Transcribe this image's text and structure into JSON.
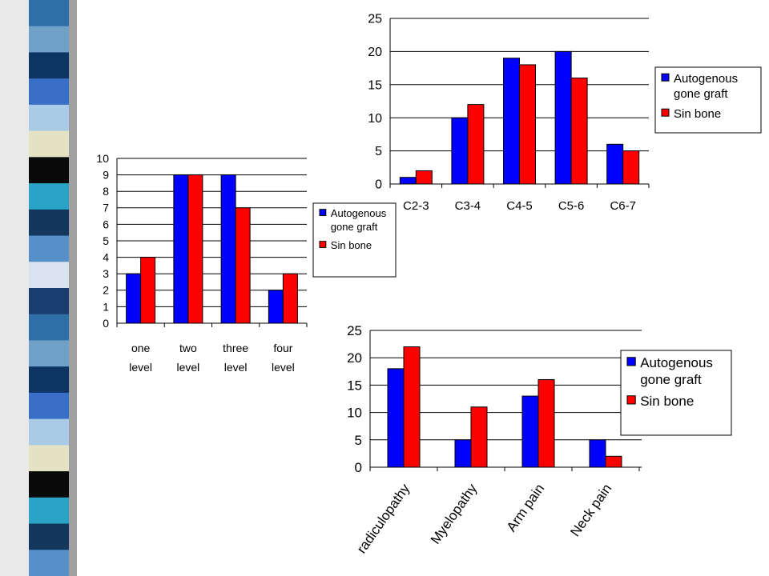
{
  "decoration": {
    "stripe_colors": [
      "#2f6fa7",
      "#6fa0c8",
      "#0d3563",
      "#3a6fc7",
      "#a9cbe8",
      "#e3e3c3",
      "#0a0a0a",
      "#2aa3c7",
      "#14375e",
      "#5790c9",
      "#d8e3ef",
      "#193d6e"
    ]
  },
  "chart_data": [
    {
      "type": "bar",
      "categories": [
        "C2-3",
        "C3-4",
        "C4-5",
        "C5-6",
        "C6-7"
      ],
      "series": [
        {
          "name": "Autogenous gone graft",
          "color": "#0000ff",
          "values": [
            1,
            10,
            19,
            20,
            6
          ]
        },
        {
          "name": "Sin bone",
          "color": "#ff0000",
          "values": [
            2,
            12,
            18,
            16,
            5
          ]
        }
      ],
      "yticks": [
        0,
        5,
        10,
        15,
        20,
        25
      ],
      "ylim": [
        0,
        25
      ],
      "grid": true,
      "legend": {
        "position": "right",
        "lines": [
          [
            "Autogenous",
            "gone graft"
          ],
          [
            "Sin bone"
          ]
        ]
      }
    },
    {
      "type": "bar",
      "categories": [
        [
          "one",
          "level"
        ],
        [
          "two",
          "level"
        ],
        [
          "three",
          "level"
        ],
        [
          "four",
          "level"
        ]
      ],
      "series": [
        {
          "name": "Autogenous gone graft",
          "color": "#0000ff",
          "values": [
            3,
            9,
            9,
            2
          ]
        },
        {
          "name": "Sin bone",
          "color": "#ff0000",
          "values": [
            4,
            9,
            7,
            3
          ]
        }
      ],
      "yticks": [
        0,
        1,
        2,
        3,
        4,
        5,
        6,
        7,
        8,
        9,
        10
      ],
      "ylim": [
        0,
        10
      ],
      "grid": true,
      "legend": {
        "position": "right",
        "lines": [
          [
            "Autogenous",
            "gone graft"
          ],
          [
            "Sin bone"
          ]
        ]
      }
    },
    {
      "type": "bar",
      "categories": [
        "radiculopathy",
        "Myelopathy",
        "Arm pain",
        "Neck pain"
      ],
      "category_labels_rotated": true,
      "series": [
        {
          "name": "Autogenous gone graft",
          "color": "#0000ff",
          "values": [
            18,
            5,
            13,
            5
          ]
        },
        {
          "name": "Sin bone",
          "color": "#ff0000",
          "values": [
            22,
            11,
            16,
            2
          ]
        }
      ],
      "yticks": [
        0,
        5,
        10,
        15,
        20,
        25
      ],
      "ylim": [
        0,
        25
      ],
      "grid": true,
      "legend": {
        "position": "right",
        "lines": [
          [
            "Autogenous",
            "gone graft"
          ],
          [
            "Sin bone"
          ]
        ]
      }
    }
  ]
}
